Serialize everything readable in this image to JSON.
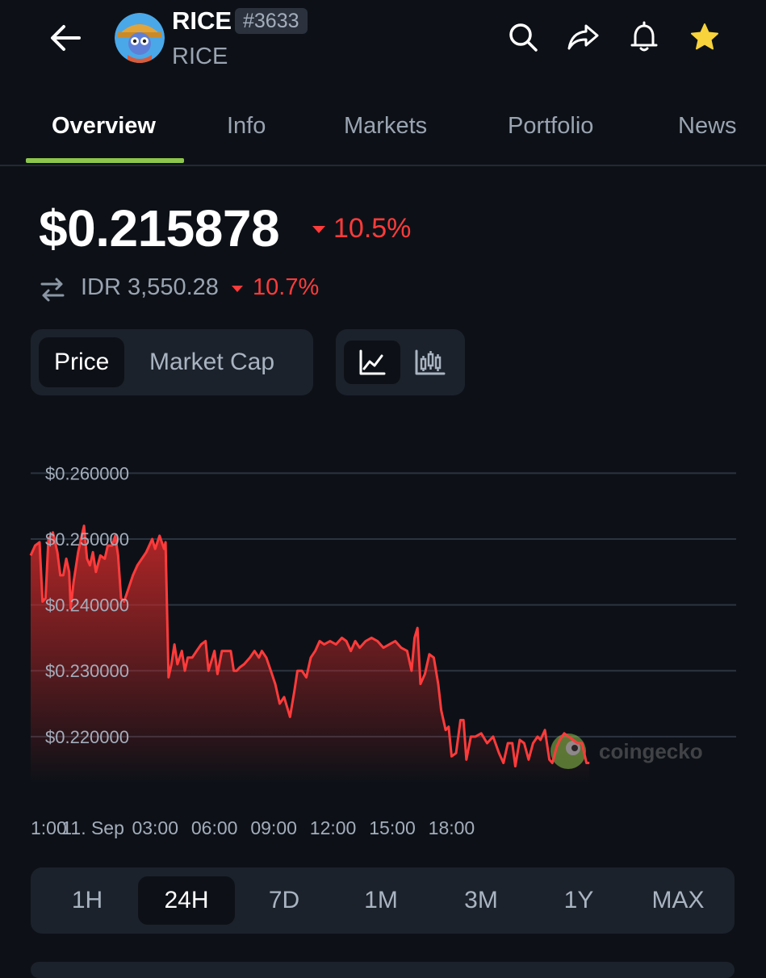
{
  "header": {
    "coin_name": "RICE",
    "rank": "#3633",
    "symbol": "RICE",
    "icons": [
      "back-arrow-icon",
      "search-icon",
      "share-icon",
      "bell-icon",
      "star-icon"
    ]
  },
  "tabs": [
    {
      "label": "Overview",
      "active": true
    },
    {
      "label": "Info"
    },
    {
      "label": "Markets"
    },
    {
      "label": "Portfolio"
    },
    {
      "label": "News"
    }
  ],
  "price": {
    "value": "$0.215878",
    "change": "10.5%",
    "converted": "IDR 3,550.28",
    "converted_change": "10.7%"
  },
  "toggle": {
    "price_label": "Price",
    "market_cap_label": "Market Cap",
    "selected": "Price",
    "chart_types": [
      "line-chart-icon",
      "candlestick-icon"
    ]
  },
  "watermark": "coingecko",
  "colors": {
    "accent": "#8dc64c",
    "negative": "#ff3b3b",
    "background": "#0d1117",
    "panel": "#1c222b"
  },
  "chart_data": {
    "type": "area",
    "ylim": [
      0.213,
      0.262
    ],
    "y_ticks": [
      "$0.260000",
      "$0.250000",
      "$0.240000",
      "$0.230000",
      "$0.220000"
    ],
    "y_tick_values": [
      0.26,
      0.25,
      0.24,
      0.23,
      0.22
    ],
    "x_ticks": [
      "1:00",
      "11. Sep",
      "03:00",
      "06:00",
      "09:00",
      "12:00",
      "15:00",
      "18:00"
    ],
    "xlim": [
      0,
      23.8
    ],
    "x_tick_values": [
      0,
      2.1,
      4.2,
      6.2,
      8.2,
      10.2,
      12.2,
      14.2
    ],
    "series": [
      {
        "color": "#ff3b3b",
        "points": [
          [
            0,
            0.2475
          ],
          [
            0.15,
            0.249
          ],
          [
            0.3,
            0.2495
          ],
          [
            0.4,
            0.2405
          ],
          [
            0.5,
            0.241
          ],
          [
            0.6,
            0.25
          ],
          [
            0.75,
            0.251
          ],
          [
            0.9,
            0.248
          ],
          [
            1.0,
            0.2445
          ],
          [
            1.1,
            0.2445
          ],
          [
            1.2,
            0.247
          ],
          [
            1.3,
            0.245
          ],
          [
            1.35,
            0.2395
          ],
          [
            1.45,
            0.2435
          ],
          [
            1.6,
            0.248
          ],
          [
            1.7,
            0.25
          ],
          [
            1.8,
            0.252
          ],
          [
            1.9,
            0.247
          ],
          [
            2.0,
            0.246
          ],
          [
            2.1,
            0.248
          ],
          [
            2.2,
            0.245
          ],
          [
            2.35,
            0.2475
          ],
          [
            2.5,
            0.247
          ],
          [
            2.6,
            0.249
          ],
          [
            2.75,
            0.249
          ],
          [
            2.85,
            0.2505
          ],
          [
            2.95,
            0.2475
          ],
          [
            3.05,
            0.241
          ],
          [
            3.15,
            0.2405
          ],
          [
            3.3,
            0.2425
          ],
          [
            3.45,
            0.2445
          ],
          [
            3.6,
            0.246
          ],
          [
            3.75,
            0.247
          ],
          [
            3.9,
            0.248
          ],
          [
            4.0,
            0.249
          ],
          [
            4.1,
            0.25
          ],
          [
            4.2,
            0.2485
          ],
          [
            4.35,
            0.2505
          ],
          [
            4.5,
            0.2485
          ],
          [
            4.55,
            0.2495
          ],
          [
            4.65,
            0.229
          ],
          [
            4.75,
            0.231
          ],
          [
            4.85,
            0.234
          ],
          [
            4.95,
            0.231
          ],
          [
            5.1,
            0.233
          ],
          [
            5.2,
            0.23
          ],
          [
            5.3,
            0.232
          ],
          [
            5.45,
            0.232
          ],
          [
            5.6,
            0.233
          ],
          [
            5.75,
            0.234
          ],
          [
            5.9,
            0.2345
          ],
          [
            6.0,
            0.23
          ],
          [
            6.1,
            0.2315
          ],
          [
            6.2,
            0.233
          ],
          [
            6.3,
            0.2295
          ],
          [
            6.45,
            0.233
          ],
          [
            6.6,
            0.233
          ],
          [
            6.75,
            0.233
          ],
          [
            6.85,
            0.23
          ],
          [
            6.95,
            0.23
          ],
          [
            7.05,
            0.2305
          ],
          [
            7.2,
            0.231
          ],
          [
            7.4,
            0.232
          ],
          [
            7.55,
            0.233
          ],
          [
            7.7,
            0.232
          ],
          [
            7.8,
            0.233
          ],
          [
            7.95,
            0.232
          ],
          [
            8.1,
            0.23
          ],
          [
            8.25,
            0.228
          ],
          [
            8.4,
            0.225
          ],
          [
            8.55,
            0.226
          ],
          [
            8.75,
            0.223
          ],
          [
            8.9,
            0.227
          ],
          [
            9.0,
            0.23
          ],
          [
            9.15,
            0.23
          ],
          [
            9.3,
            0.229
          ],
          [
            9.45,
            0.232
          ],
          [
            9.6,
            0.233
          ],
          [
            9.75,
            0.2345
          ],
          [
            9.9,
            0.234
          ],
          [
            10.1,
            0.2345
          ],
          [
            10.3,
            0.234
          ],
          [
            10.5,
            0.235
          ],
          [
            10.65,
            0.2345
          ],
          [
            10.8,
            0.233
          ],
          [
            10.95,
            0.2345
          ],
          [
            11.1,
            0.2335
          ],
          [
            11.3,
            0.2345
          ],
          [
            11.5,
            0.235
          ],
          [
            11.7,
            0.2345
          ],
          [
            11.9,
            0.2335
          ],
          [
            12.1,
            0.234
          ],
          [
            12.3,
            0.2345
          ],
          [
            12.5,
            0.2335
          ],
          [
            12.7,
            0.233
          ],
          [
            12.85,
            0.23
          ],
          [
            12.95,
            0.235
          ],
          [
            13.05,
            0.2365
          ],
          [
            13.15,
            0.228
          ],
          [
            13.3,
            0.2295
          ],
          [
            13.45,
            0.2325
          ],
          [
            13.6,
            0.232
          ],
          [
            13.75,
            0.228
          ],
          [
            13.85,
            0.224
          ],
          [
            14.0,
            0.221
          ],
          [
            14.1,
            0.2215
          ],
          [
            14.2,
            0.217
          ],
          [
            14.35,
            0.2175
          ],
          [
            14.5,
            0.2225
          ],
          [
            14.6,
            0.2225
          ],
          [
            14.7,
            0.2165
          ],
          [
            14.85,
            0.22
          ],
          [
            15.0,
            0.22
          ],
          [
            15.2,
            0.2205
          ],
          [
            15.4,
            0.219
          ],
          [
            15.6,
            0.22
          ],
          [
            15.8,
            0.2175
          ],
          [
            15.95,
            0.216
          ],
          [
            16.1,
            0.219
          ],
          [
            16.25,
            0.219
          ],
          [
            16.35,
            0.2155
          ],
          [
            16.5,
            0.2195
          ],
          [
            16.65,
            0.219
          ],
          [
            16.8,
            0.2165
          ],
          [
            16.95,
            0.219
          ],
          [
            17.1,
            0.22
          ],
          [
            17.2,
            0.2195
          ],
          [
            17.35,
            0.221
          ],
          [
            17.5,
            0.2165
          ],
          [
            17.6,
            0.216
          ],
          [
            17.75,
            0.2185
          ],
          [
            17.85,
            0.2195
          ],
          [
            18.0,
            0.2205
          ],
          [
            18.15,
            0.22
          ],
          [
            18.3,
            0.2195
          ],
          [
            18.45,
            0.219
          ],
          [
            18.6,
            0.219
          ],
          [
            18.75,
            0.216
          ],
          [
            18.85,
            0.216
          ]
        ]
      }
    ]
  },
  "range": {
    "options": [
      "1H",
      "24H",
      "7D",
      "1M",
      "3M",
      "1Y",
      "MAX"
    ],
    "selected": "24H"
  }
}
